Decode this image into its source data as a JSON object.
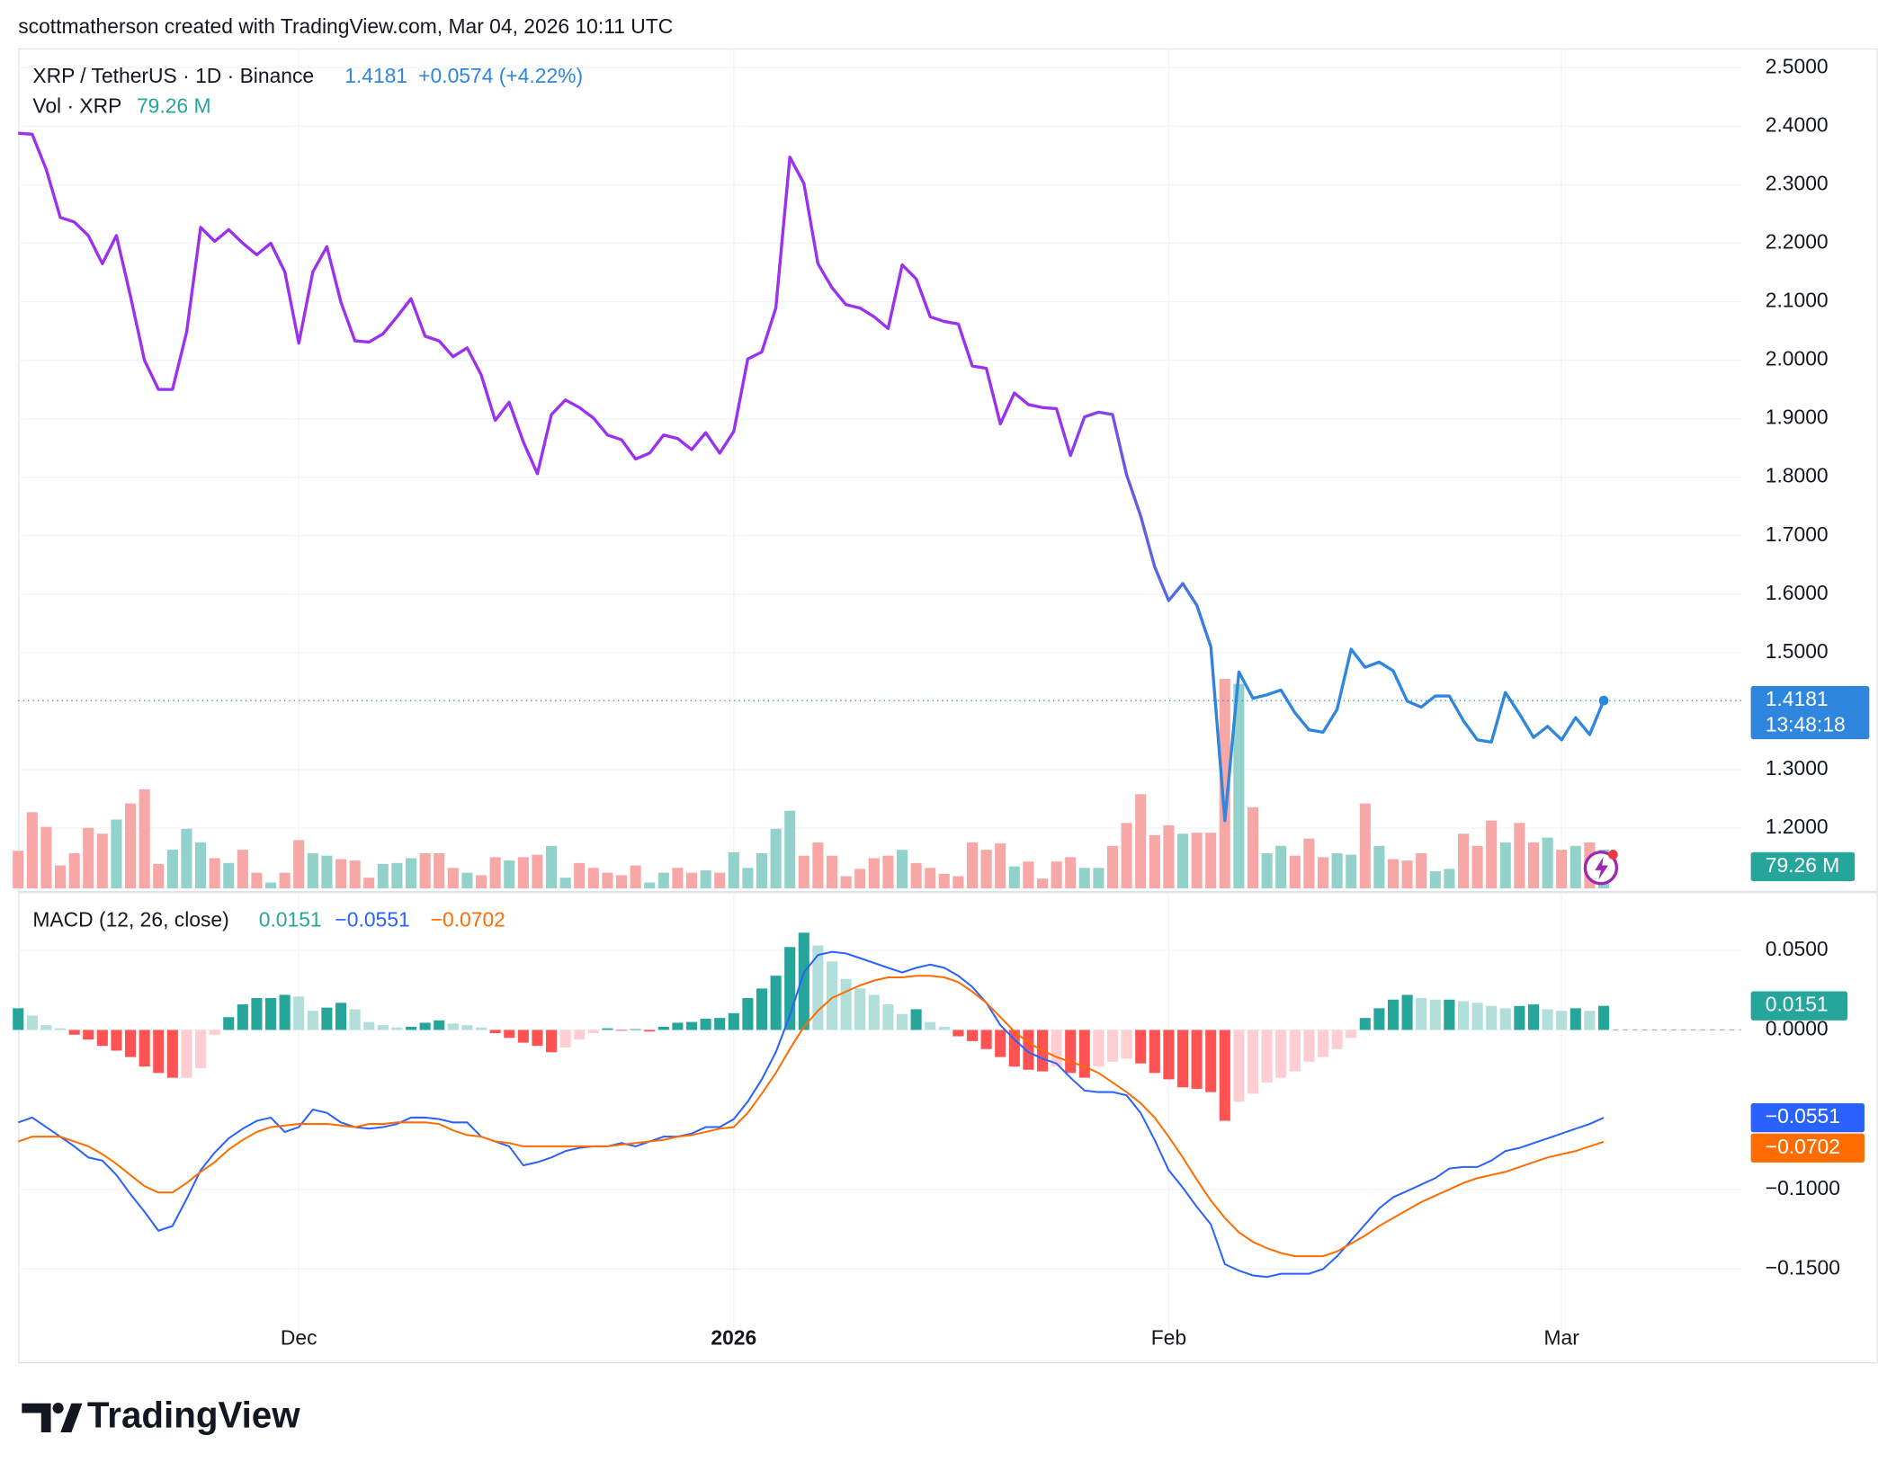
{
  "header": {
    "text": "scottmatherson created with TradingView.com, Mar 04, 2026 10:11 UTC"
  },
  "footer": {
    "brand": "TradingView"
  },
  "chart_data": [
    {
      "type": "line",
      "series": [
        {
          "name": "XRP / TetherUS · 1D · Binance",
          "colors": [
            "#9b30f0",
            "#2e86de"
          ],
          "values": [
            2.388,
            2.386,
            2.326,
            2.244,
            2.236,
            2.213,
            2.165,
            2.213,
            2.11,
            2.0,
            1.95,
            1.95,
            2.048,
            2.227,
            2.203,
            2.223,
            2.2,
            2.18,
            2.2,
            2.151,
            2.029,
            2.151,
            2.194,
            2.099,
            2.033,
            2.031,
            2.045,
            2.074,
            2.105,
            2.041,
            2.033,
            2.006,
            2.021,
            1.975,
            1.897,
            1.928,
            1.86,
            1.806,
            1.907,
            1.932,
            1.919,
            1.901,
            1.872,
            1.864,
            1.831,
            1.841,
            1.872,
            1.866,
            1.847,
            1.876,
            1.841,
            1.878,
            2.002,
            2.014,
            2.089,
            2.347,
            2.302,
            2.165,
            2.124,
            2.095,
            2.089,
            2.074,
            2.054,
            2.163,
            2.139,
            2.074,
            2.066,
            2.062,
            1.99,
            1.986,
            1.891,
            1.944,
            1.924,
            1.919,
            1.917,
            1.837,
            1.903,
            1.911,
            1.907,
            1.804,
            1.734,
            1.647,
            1.589,
            1.618,
            1.581,
            1.51,
            1.213,
            1.467,
            1.422,
            1.428,
            1.436,
            1.397,
            1.368,
            1.364,
            1.403,
            1.506,
            1.475,
            1.484,
            1.469,
            1.417,
            1.407,
            1.426,
            1.426,
            1.384,
            1.351,
            1.347,
            1.432,
            1.395,
            1.355,
            1.374,
            1.351,
            1.389,
            1.36,
            1.4181
          ],
          "change_label": "+0.0574 (+4.22%)",
          "countdown": "13:48:18",
          "label_color": "#2e86de"
        }
      ],
      "volume": {
        "name": "Vol · XRP",
        "value_label": "79.26 M",
        "up_color": "#92d2ca",
        "down_color": "#f7a8a6",
        "label_color": "#26a69a",
        "values": [
          77,
          156,
          126,
          47,
          72,
          124,
          112,
          141,
          174,
          203,
          50,
          79,
          122,
          94,
          62,
          52,
          79,
          32,
          12,
          32,
          99,
          72,
          67,
          60,
          57,
          22,
          50,
          52,
          62,
          72,
          72,
          42,
          32,
          27,
          64,
          57,
          64,
          69,
          87,
          22,
          52,
          42,
          32,
          27,
          47,
          12,
          32,
          42,
          32,
          37,
          32,
          74,
          42,
          72,
          122,
          159,
          67,
          94,
          67,
          25,
          40,
          62,
          67,
          79,
          52,
          42,
          30,
          25,
          94,
          79,
          92,
          45,
          55,
          20,
          55,
          64,
          42,
          42,
          87,
          134,
          193,
          109,
          129,
          112,
          114,
          114,
          429,
          419,
          166,
          72,
          87,
          67,
          102,
          64,
          72,
          69,
          174,
          87,
          60,
          57,
          72,
          35,
          40,
          112,
          87,
          139,
          94,
          134,
          94,
          104,
          79,
          87,
          94,
          79.26
        ]
      },
      "ylim": [
        1.097,
        2.533
      ],
      "yticks": [
        {
          "value": 1.2,
          "label": "1.2000"
        },
        {
          "value": 1.3,
          "label": "1.3000"
        },
        {
          "value": 1.5,
          "label": "1.5000"
        },
        {
          "value": 1.6,
          "label": "1.6000"
        },
        {
          "value": 1.7,
          "label": "1.7000"
        },
        {
          "value": 1.8,
          "label": "1.8000"
        },
        {
          "value": 1.9,
          "label": "1.9000"
        },
        {
          "value": 2.0,
          "label": "2.0000"
        },
        {
          "value": 2.1,
          "label": "2.1000"
        },
        {
          "value": 2.2,
          "label": "2.2000"
        },
        {
          "value": 2.3,
          "label": "2.3000"
        },
        {
          "value": 2.4,
          "label": "2.4000"
        },
        {
          "value": 2.5,
          "label": "2.5000"
        }
      ],
      "grid": true
    },
    {
      "type": "macd",
      "title": "MACD (12, 26, close)",
      "histogram": {
        "up_strong": "#26a69a",
        "up_weak": "#b2dfdb",
        "down_strong": "#ff5252",
        "down_weak": "#ffcdd2",
        "values": [
          0.0136,
          0.009,
          0.003,
          0.001,
          -0.003,
          -0.006,
          -0.01,
          -0.013,
          -0.017,
          -0.023,
          -0.027,
          -0.03,
          -0.03,
          -0.024,
          -0.003,
          0.008,
          0.016,
          0.02,
          0.02,
          0.022,
          0.021,
          0.012,
          0.014,
          0.017,
          0.013,
          0.005,
          0.003,
          0.0015,
          0.002,
          0.0045,
          0.006,
          0.004,
          0.003,
          0.0015,
          -0.002,
          -0.005,
          -0.008,
          -0.01,
          -0.014,
          -0.011,
          -0.006,
          -0.002,
          0.001,
          -0.0005,
          0.0005,
          -0.001,
          0.002,
          0.0045,
          0.005,
          0.007,
          0.0075,
          0.0105,
          0.02,
          0.026,
          0.034,
          0.052,
          0.061,
          0.053,
          0.043,
          0.032,
          0.026,
          0.022,
          0.016,
          0.01,
          0.013,
          0.005,
          0.002,
          -0.004,
          -0.007,
          -0.012,
          -0.017,
          -0.023,
          -0.025,
          -0.026,
          -0.023,
          -0.027,
          -0.03,
          -0.023,
          -0.02,
          -0.018,
          -0.021,
          -0.027,
          -0.031,
          -0.036,
          -0.037,
          -0.039,
          -0.057,
          -0.045,
          -0.04,
          -0.033,
          -0.03,
          -0.026,
          -0.02,
          -0.017,
          -0.012,
          -0.005,
          0.0075,
          0.0136,
          0.019,
          0.022,
          0.02,
          0.019,
          0.019,
          0.018,
          0.017,
          0.015,
          0.0136,
          0.015,
          0.016,
          0.013,
          0.012,
          0.0136,
          0.012,
          0.0151
        ]
      },
      "series": [
        {
          "color": "#2962ff",
          "last_label": "−0.0551",
          "values": [
            -0.058,
            -0.055,
            -0.061,
            -0.067,
            -0.073,
            -0.08,
            -0.082,
            -0.091,
            -0.103,
            -0.114,
            -0.126,
            -0.123,
            -0.106,
            -0.088,
            -0.077,
            -0.068,
            -0.062,
            -0.057,
            -0.055,
            -0.064,
            -0.061,
            -0.05,
            -0.052,
            -0.058,
            -0.061,
            -0.062,
            -0.061,
            -0.059,
            -0.055,
            -0.055,
            -0.056,
            -0.058,
            -0.058,
            -0.067,
            -0.07,
            -0.073,
            -0.085,
            -0.083,
            -0.08,
            -0.076,
            -0.074,
            -0.073,
            -0.073,
            -0.071,
            -0.073,
            -0.07,
            -0.067,
            -0.067,
            -0.065,
            -0.061,
            -0.061,
            -0.056,
            -0.045,
            -0.031,
            -0.014,
            0.009,
            0.036,
            0.047,
            0.049,
            0.048,
            0.045,
            0.042,
            0.039,
            0.036,
            0.039,
            0.041,
            0.039,
            0.034,
            0.027,
            0.017,
            0.003,
            -0.006,
            -0.014,
            -0.018,
            -0.021,
            -0.03,
            -0.038,
            -0.039,
            -0.039,
            -0.041,
            -0.052,
            -0.069,
            -0.088,
            -0.099,
            -0.111,
            -0.122,
            -0.147,
            -0.151,
            -0.154,
            -0.155,
            -0.153,
            -0.153,
            -0.153,
            -0.15,
            -0.142,
            -0.132,
            -0.122,
            -0.112,
            -0.105,
            -0.101,
            -0.097,
            -0.093,
            -0.087,
            -0.086,
            -0.086,
            -0.082,
            -0.076,
            -0.074,
            -0.071,
            -0.068,
            -0.065,
            -0.062,
            -0.059,
            -0.0551
          ]
        },
        {
          "color": "#ff6d00",
          "last_label": "−0.0702",
          "values": [
            -0.07,
            -0.067,
            -0.067,
            -0.067,
            -0.07,
            -0.073,
            -0.078,
            -0.084,
            -0.091,
            -0.098,
            -0.102,
            -0.102,
            -0.096,
            -0.089,
            -0.083,
            -0.075,
            -0.069,
            -0.064,
            -0.061,
            -0.06,
            -0.059,
            -0.059,
            -0.059,
            -0.06,
            -0.061,
            -0.059,
            -0.059,
            -0.058,
            -0.058,
            -0.058,
            -0.059,
            -0.063,
            -0.066,
            -0.067,
            -0.07,
            -0.071,
            -0.073,
            -0.073,
            -0.073,
            -0.073,
            -0.073,
            -0.073,
            -0.073,
            -0.072,
            -0.071,
            -0.07,
            -0.069,
            -0.067,
            -0.066,
            -0.064,
            -0.062,
            -0.061,
            -0.052,
            -0.04,
            -0.027,
            -0.012,
            0.002,
            0.012,
            0.02,
            0.024,
            0.028,
            0.031,
            0.033,
            0.033,
            0.034,
            0.034,
            0.033,
            0.03,
            0.024,
            0.017,
            0.008,
            -0.001,
            -0.008,
            -0.013,
            -0.017,
            -0.02,
            -0.023,
            -0.027,
            -0.033,
            -0.039,
            -0.046,
            -0.055,
            -0.067,
            -0.08,
            -0.094,
            -0.107,
            -0.118,
            -0.127,
            -0.133,
            -0.137,
            -0.14,
            -0.142,
            -0.142,
            -0.142,
            -0.139,
            -0.134,
            -0.129,
            -0.123,
            -0.118,
            -0.113,
            -0.108,
            -0.104,
            -0.1,
            -0.096,
            -0.093,
            -0.091,
            -0.089,
            -0.086,
            -0.083,
            -0.08,
            -0.078,
            -0.076,
            -0.073,
            -0.0702
          ]
        }
      ],
      "ylim": [
        -0.188,
        0.085
      ],
      "yticks": [
        {
          "value": 0.05,
          "label": "0.0500"
        },
        {
          "value": 0,
          "label": "0.0000"
        },
        {
          "value": -0.1,
          "label": "−0.1000"
        },
        {
          "value": -0.15,
          "label": "−0.1500"
        }
      ],
      "xlim": [
        0,
        122.8
      ],
      "xticks": [
        {
          "value": 20,
          "label": "Dec"
        },
        {
          "value": 51,
          "label": "2026"
        },
        {
          "value": 82,
          "label": "Feb"
        },
        {
          "value": 110,
          "label": "Mar"
        }
      ],
      "grid": true
    }
  ]
}
